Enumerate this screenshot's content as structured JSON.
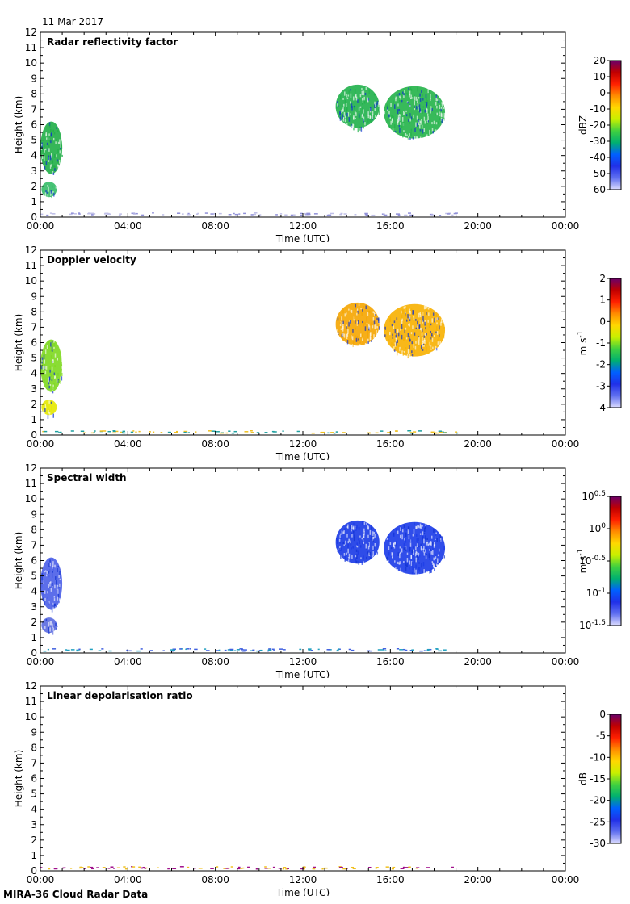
{
  "header": {
    "date": "11 Mar 2017"
  },
  "footer": {
    "label": "MIRA-36 Cloud Radar Data"
  },
  "chart_data": [
    {
      "type": "heatmap",
      "title": "Radar reflectivity factor",
      "xlabel": "Time (UTC)",
      "ylabel": "Height (km)",
      "xticks": [
        "00:00",
        "04:00",
        "08:00",
        "12:00",
        "16:00",
        "20:00",
        "00:00"
      ],
      "xlim_hours": [
        0,
        24
      ],
      "yticks": [
        0,
        1,
        2,
        3,
        4,
        5,
        6,
        7,
        8,
        9,
        10,
        11,
        12
      ],
      "ylim": [
        0,
        12
      ],
      "colorbar": {
        "label": "dBZ",
        "ticks": [
          "20",
          "10",
          "0",
          "-10",
          "-20",
          "-30",
          "-40",
          "-50",
          "-60"
        ],
        "range": [
          -60,
          20
        ]
      },
      "features": [
        {
          "t0": 0.0,
          "t1": 1.0,
          "h0": 2.8,
          "h1": 6.2,
          "value_colour": "#1fae46"
        },
        {
          "t0": 0.05,
          "t1": 0.75,
          "h0": 1.3,
          "h1": 2.3,
          "value_colour": "#33bb66"
        },
        {
          "t0": 13.5,
          "t1": 15.5,
          "h0": 5.8,
          "h1": 8.6,
          "value_colour": "#1fb04a"
        },
        {
          "t0": 15.7,
          "t1": 18.5,
          "h0": 5.1,
          "h1": 8.5,
          "value_colour": "#22b348"
        }
      ]
    },
    {
      "type": "heatmap",
      "title": "Doppler velocity",
      "xlabel": "Time (UTC)",
      "ylabel": "Height (km)",
      "xticks": [
        "00:00",
        "04:00",
        "08:00",
        "12:00",
        "16:00",
        "20:00",
        "00:00"
      ],
      "xlim_hours": [
        0,
        24
      ],
      "yticks": [
        0,
        1,
        2,
        3,
        4,
        5,
        6,
        7,
        8,
        9,
        10,
        11,
        12
      ],
      "ylim": [
        0,
        12
      ],
      "colorbar": {
        "label": "m s-1",
        "ticks": [
          "2",
          "1",
          "0",
          "-1",
          "-2",
          "-3",
          "-4"
        ],
        "range": [
          -4,
          2
        ]
      },
      "features": [
        {
          "t0": 0.0,
          "t1": 1.0,
          "h0": 2.8,
          "h1": 6.2,
          "value_colour": "#7dd81e"
        },
        {
          "t0": 0.05,
          "t1": 0.75,
          "h0": 1.3,
          "h1": 2.3,
          "value_colour": "#e4e800"
        },
        {
          "t0": 13.5,
          "t1": 15.5,
          "h0": 5.8,
          "h1": 8.6,
          "value_colour": "#f5a500"
        },
        {
          "t0": 15.7,
          "t1": 18.5,
          "h0": 5.1,
          "h1": 8.5,
          "value_colour": "#f7b000"
        }
      ]
    },
    {
      "type": "heatmap",
      "title": "Spectral width",
      "xlabel": "Time (UTC)",
      "ylabel": "Height (km)",
      "xticks": [
        "00:00",
        "04:00",
        "08:00",
        "12:00",
        "16:00",
        "20:00",
        "00:00"
      ],
      "xlim_hours": [
        0,
        24
      ],
      "yticks": [
        0,
        1,
        2,
        3,
        4,
        5,
        6,
        7,
        8,
        9,
        10,
        11,
        12
      ],
      "ylim": [
        0,
        12
      ],
      "colorbar": {
        "label": "m s-1",
        "ticks": [
          "10^0.5",
          "10^0",
          "10^-0.5",
          "10^-1",
          "10^-1.5"
        ],
        "range": [
          -1.5,
          0.5
        ]
      },
      "features": [
        {
          "t0": 0.0,
          "t1": 1.0,
          "h0": 2.8,
          "h1": 6.2,
          "value_colour": "#4a5ee8"
        },
        {
          "t0": 0.05,
          "t1": 0.75,
          "h0": 1.3,
          "h1": 2.3,
          "value_colour": "#5a6ae0"
        },
        {
          "t0": 13.5,
          "t1": 15.5,
          "h0": 5.8,
          "h1": 8.6,
          "value_colour": "#1838e6"
        },
        {
          "t0": 15.7,
          "t1": 18.5,
          "h0": 5.1,
          "h1": 8.5,
          "value_colour": "#1a3ae8"
        }
      ]
    },
    {
      "type": "heatmap",
      "title": "Linear depolarisation ratio",
      "xlabel": "Time (UTC)",
      "ylabel": "Height (km)",
      "xticks": [
        "00:00",
        "04:00",
        "08:00",
        "12:00",
        "16:00",
        "20:00",
        "00:00"
      ],
      "xlim_hours": [
        0,
        24
      ],
      "yticks": [
        0,
        1,
        2,
        3,
        4,
        5,
        6,
        7,
        8,
        9,
        10,
        11,
        12
      ],
      "ylim": [
        0,
        12
      ],
      "colorbar": {
        "label": "dB",
        "ticks": [
          "0",
          "-5",
          "-10",
          "-15",
          "-20",
          "-25",
          "-30"
        ],
        "range": [
          -30,
          0
        ]
      },
      "features": []
    }
  ]
}
